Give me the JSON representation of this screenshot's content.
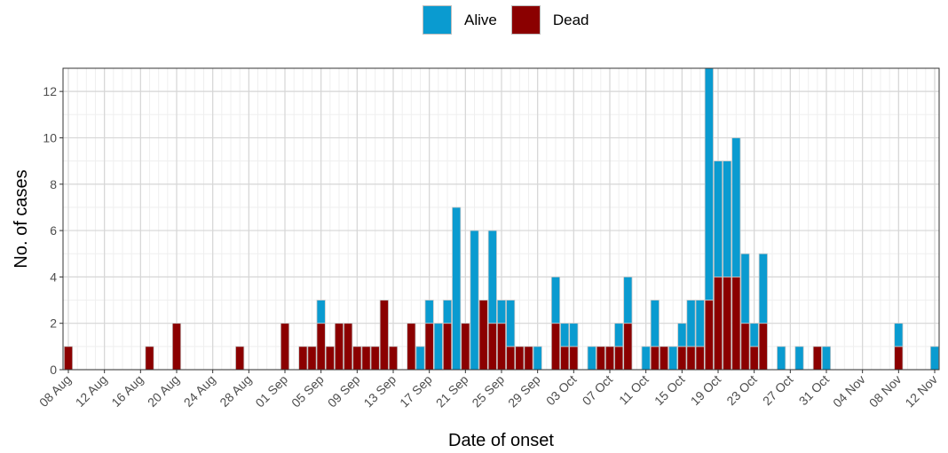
{
  "legend": {
    "alive_label": "Alive",
    "dead_label": "Dead"
  },
  "colors": {
    "alive": "#0a9bd0",
    "dead": "#8b0000",
    "bar_outline": "#c8c8c8",
    "grid_major": "#d6d6d6",
    "grid_minor": "#efefef",
    "panel_border": "#333333"
  },
  "chart_data": {
    "type": "bar",
    "stacked": true,
    "xlabel": "Date of onset",
    "ylabel": "No. of cases",
    "ylim": [
      0,
      13
    ],
    "y_ticks": [
      0,
      2,
      4,
      6,
      8,
      10,
      12
    ],
    "x_tick_labels": [
      "08 Aug",
      "12 Aug",
      "16 Aug",
      "20 Aug",
      "24 Aug",
      "28 Aug",
      "01 Sep",
      "05 Sep",
      "09 Sep",
      "13 Sep",
      "17 Sep",
      "21 Sep",
      "25 Sep",
      "29 Sep",
      "03 Oct",
      "07 Oct",
      "11 Oct",
      "15 Oct",
      "19 Oct",
      "23 Oct",
      "27 Oct",
      "31 Oct",
      "04 Nov",
      "08 Nov",
      "12 Nov"
    ],
    "grid": true,
    "legend_position": "top",
    "categories": [
      "08 Aug",
      "09 Aug",
      "10 Aug",
      "11 Aug",
      "12 Aug",
      "13 Aug",
      "14 Aug",
      "15 Aug",
      "16 Aug",
      "17 Aug",
      "18 Aug",
      "19 Aug",
      "20 Aug",
      "21 Aug",
      "22 Aug",
      "23 Aug",
      "24 Aug",
      "25 Aug",
      "26 Aug",
      "27 Aug",
      "28 Aug",
      "29 Aug",
      "30 Aug",
      "31 Aug",
      "01 Sep",
      "02 Sep",
      "03 Sep",
      "04 Sep",
      "05 Sep",
      "06 Sep",
      "07 Sep",
      "08 Sep",
      "09 Sep",
      "10 Sep",
      "11 Sep",
      "12 Sep",
      "13 Sep",
      "14 Sep",
      "15 Sep",
      "16 Sep",
      "17 Sep",
      "18 Sep",
      "19 Sep",
      "20 Sep",
      "21 Sep",
      "22 Sep",
      "23 Sep",
      "24 Sep",
      "25 Sep",
      "26 Sep",
      "27 Sep",
      "28 Sep",
      "29 Sep",
      "30 Sep",
      "01 Oct",
      "02 Oct",
      "03 Oct",
      "04 Oct",
      "05 Oct",
      "06 Oct",
      "07 Oct",
      "08 Oct",
      "09 Oct",
      "10 Oct",
      "11 Oct",
      "12 Oct",
      "13 Oct",
      "14 Oct",
      "15 Oct",
      "16 Oct",
      "17 Oct",
      "18 Oct",
      "19 Oct",
      "20 Oct",
      "21 Oct",
      "22 Oct",
      "23 Oct",
      "24 Oct",
      "25 Oct",
      "26 Oct",
      "27 Oct",
      "28 Oct",
      "29 Oct",
      "30 Oct",
      "31 Oct",
      "01 Nov",
      "02 Nov",
      "03 Nov",
      "04 Nov",
      "05 Nov",
      "06 Nov",
      "07 Nov",
      "08 Nov",
      "09 Nov",
      "10 Nov",
      "11 Nov",
      "12 Nov"
    ],
    "series": [
      {
        "name": "Dead",
        "values": [
          1,
          0,
          0,
          0,
          0,
          0,
          0,
          0,
          0,
          1,
          0,
          0,
          2,
          0,
          0,
          0,
          0,
          0,
          0,
          1,
          0,
          0,
          0,
          0,
          2,
          0,
          1,
          1,
          2,
          1,
          2,
          2,
          1,
          1,
          1,
          3,
          1,
          0,
          2,
          0,
          2,
          0,
          2,
          0,
          2,
          0,
          3,
          2,
          2,
          1,
          1,
          1,
          0,
          0,
          2,
          1,
          1,
          0,
          0,
          1,
          1,
          1,
          2,
          0,
          0,
          1,
          1,
          0,
          1,
          1,
          1,
          3,
          4,
          4,
          4,
          2,
          1,
          2,
          0,
          0,
          0,
          0,
          0,
          1,
          0,
          0,
          0,
          0,
          0,
          0,
          0,
          0,
          1,
          0,
          0,
          0,
          0
        ]
      },
      {
        "name": "Alive",
        "values": [
          0,
          0,
          0,
          0,
          0,
          0,
          0,
          0,
          0,
          0,
          0,
          0,
          0,
          0,
          0,
          0,
          0,
          0,
          0,
          0,
          0,
          0,
          0,
          0,
          0,
          0,
          0,
          0,
          1,
          0,
          0,
          0,
          0,
          0,
          0,
          0,
          0,
          0,
          0,
          1,
          1,
          2,
          1,
          7,
          0,
          6,
          0,
          4,
          1,
          2,
          0,
          0,
          1,
          0,
          2,
          1,
          1,
          0,
          1,
          0,
          0,
          1,
          2,
          0,
          1,
          2,
          0,
          1,
          1,
          2,
          2,
          10,
          5,
          5,
          6,
          3,
          1,
          3,
          0,
          1,
          0,
          1,
          0,
          0,
          1,
          0,
          0,
          0,
          0,
          0,
          0,
          0,
          1,
          0,
          0,
          0,
          1
        ]
      }
    ]
  }
}
